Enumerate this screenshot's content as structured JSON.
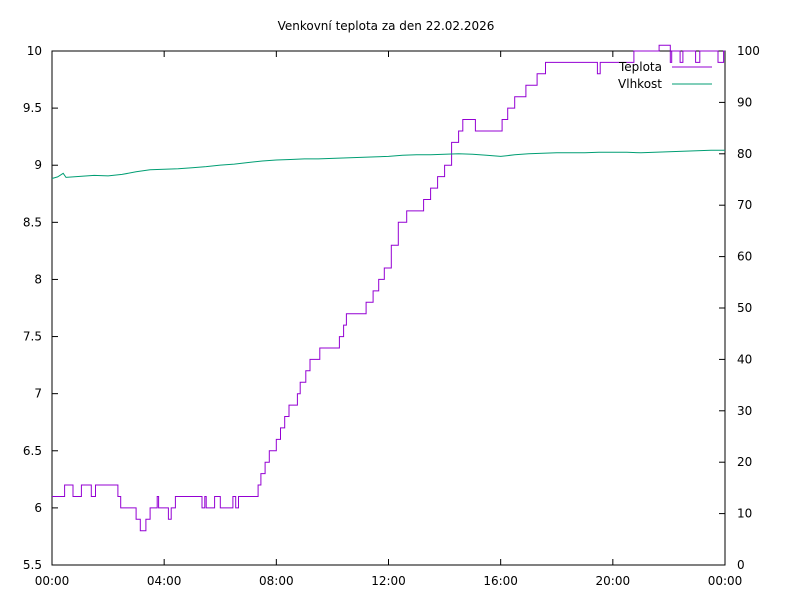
{
  "chart_data": {
    "type": "line",
    "title": "Venkovní teplota za den 22.02.2026",
    "x": {
      "range_hours": [
        0,
        24
      ],
      "tick_labels": [
        "00:00",
        "04:00",
        "08:00",
        "12:00",
        "16:00",
        "20:00",
        "00:00"
      ]
    },
    "y_left": {
      "range": [
        5.5,
        10
      ],
      "tick_labels": [
        "5.5",
        "6",
        "6.5",
        "7",
        "7.5",
        "8",
        "8.5",
        "9",
        "9.5",
        "10"
      ]
    },
    "y_right": {
      "range": [
        0,
        100
      ],
      "tick_labels": [
        "0",
        "10",
        "20",
        "30",
        "40",
        "50",
        "60",
        "70",
        "80",
        "90",
        "100"
      ]
    },
    "grid": false,
    "legend_position": "top-right",
    "series": [
      {
        "name": "Teplota",
        "axis": "left",
        "color": "#9400d3",
        "points": [
          [
            0.0,
            6.1
          ],
          [
            0.4,
            6.1
          ],
          [
            0.45,
            6.2
          ],
          [
            0.7,
            6.2
          ],
          [
            0.75,
            6.1
          ],
          [
            1.0,
            6.1
          ],
          [
            1.05,
            6.2
          ],
          [
            1.35,
            6.2
          ],
          [
            1.4,
            6.1
          ],
          [
            1.5,
            6.1
          ],
          [
            1.55,
            6.2
          ],
          [
            2.3,
            6.2
          ],
          [
            2.35,
            6.1
          ],
          [
            2.45,
            6.0
          ],
          [
            2.95,
            6.0
          ],
          [
            3.0,
            5.9
          ],
          [
            3.1,
            5.9
          ],
          [
            3.15,
            5.8
          ],
          [
            3.3,
            5.8
          ],
          [
            3.35,
            5.9
          ],
          [
            3.45,
            5.9
          ],
          [
            3.5,
            6.0
          ],
          [
            3.7,
            6.0
          ],
          [
            3.75,
            6.1
          ],
          [
            3.8,
            6.0
          ],
          [
            4.1,
            6.0
          ],
          [
            4.15,
            5.9
          ],
          [
            4.25,
            6.0
          ],
          [
            4.35,
            6.0
          ],
          [
            4.4,
            6.1
          ],
          [
            5.3,
            6.1
          ],
          [
            5.35,
            6.0
          ],
          [
            5.45,
            6.1
          ],
          [
            5.5,
            6.0
          ],
          [
            5.75,
            6.0
          ],
          [
            5.8,
            6.1
          ],
          [
            5.95,
            6.1
          ],
          [
            6.0,
            6.0
          ],
          [
            6.4,
            6.0
          ],
          [
            6.45,
            6.1
          ],
          [
            6.55,
            6.0
          ],
          [
            6.65,
            6.1
          ],
          [
            7.3,
            6.1
          ],
          [
            7.35,
            6.2
          ],
          [
            7.45,
            6.3
          ],
          [
            7.6,
            6.4
          ],
          [
            7.75,
            6.5
          ],
          [
            8.0,
            6.6
          ],
          [
            8.15,
            6.7
          ],
          [
            8.3,
            6.8
          ],
          [
            8.45,
            6.9
          ],
          [
            8.75,
            7.0
          ],
          [
            8.85,
            7.1
          ],
          [
            9.05,
            7.2
          ],
          [
            9.2,
            7.3
          ],
          [
            9.5,
            7.3
          ],
          [
            9.55,
            7.4
          ],
          [
            10.1,
            7.4
          ],
          [
            10.25,
            7.5
          ],
          [
            10.4,
            7.6
          ],
          [
            10.5,
            7.7
          ],
          [
            11.1,
            7.7
          ],
          [
            11.2,
            7.8
          ],
          [
            11.45,
            7.9
          ],
          [
            11.65,
            8.0
          ],
          [
            11.85,
            8.1
          ],
          [
            12.1,
            8.3
          ],
          [
            12.35,
            8.5
          ],
          [
            12.6,
            8.5
          ],
          [
            12.65,
            8.6
          ],
          [
            13.1,
            8.6
          ],
          [
            13.25,
            8.7
          ],
          [
            13.5,
            8.8
          ],
          [
            13.75,
            8.9
          ],
          [
            14.0,
            9.0
          ],
          [
            14.25,
            9.2
          ],
          [
            14.5,
            9.3
          ],
          [
            14.65,
            9.4
          ],
          [
            15.05,
            9.4
          ],
          [
            15.1,
            9.3
          ],
          [
            15.95,
            9.3
          ],
          [
            16.05,
            9.4
          ],
          [
            16.25,
            9.5
          ],
          [
            16.5,
            9.6
          ],
          [
            16.9,
            9.7
          ],
          [
            17.3,
            9.8
          ],
          [
            17.6,
            9.9
          ],
          [
            19.4,
            9.9
          ],
          [
            19.45,
            9.8
          ],
          [
            19.55,
            9.9
          ],
          [
            20.7,
            9.9
          ],
          [
            20.75,
            10.0
          ],
          [
            21.5,
            10.0
          ],
          [
            21.65,
            10.05
          ],
          [
            22.0,
            10.05
          ],
          [
            22.05,
            9.9
          ],
          [
            22.1,
            10.0
          ],
          [
            22.4,
            9.9
          ],
          [
            22.5,
            10.0
          ],
          [
            22.9,
            10.0
          ],
          [
            22.95,
            9.9
          ],
          [
            23.1,
            10.0
          ],
          [
            23.7,
            10.0
          ],
          [
            23.75,
            9.9
          ],
          [
            23.95,
            10.0
          ],
          [
            24.0,
            10.0
          ]
        ]
      },
      {
        "name": "Vlhkost",
        "axis": "right",
        "color": "#009e73",
        "points": [
          [
            0.0,
            75.2
          ],
          [
            0.2,
            75.5
          ],
          [
            0.4,
            76.2
          ],
          [
            0.5,
            75.4
          ],
          [
            1.0,
            75.6
          ],
          [
            1.5,
            75.8
          ],
          [
            2.0,
            75.7
          ],
          [
            2.5,
            76.0
          ],
          [
            3.0,
            76.5
          ],
          [
            3.5,
            76.9
          ],
          [
            4.0,
            77.0
          ],
          [
            4.5,
            77.1
          ],
          [
            5.0,
            77.3
          ],
          [
            5.5,
            77.5
          ],
          [
            6.0,
            77.8
          ],
          [
            6.5,
            78.0
          ],
          [
            7.0,
            78.3
          ],
          [
            7.5,
            78.6
          ],
          [
            8.0,
            78.8
          ],
          [
            8.5,
            78.9
          ],
          [
            9.0,
            79.0
          ],
          [
            9.5,
            79.0
          ],
          [
            10.0,
            79.1
          ],
          [
            10.5,
            79.2
          ],
          [
            11.0,
            79.3
          ],
          [
            11.5,
            79.4
          ],
          [
            12.0,
            79.5
          ],
          [
            12.5,
            79.7
          ],
          [
            13.0,
            79.8
          ],
          [
            13.5,
            79.8
          ],
          [
            14.0,
            79.9
          ],
          [
            14.5,
            80.0
          ],
          [
            15.0,
            79.9
          ],
          [
            15.5,
            79.7
          ],
          [
            16.0,
            79.5
          ],
          [
            16.5,
            79.8
          ],
          [
            17.0,
            80.0
          ],
          [
            17.5,
            80.1
          ],
          [
            18.0,
            80.2
          ],
          [
            18.5,
            80.2
          ],
          [
            19.0,
            80.2
          ],
          [
            19.5,
            80.3
          ],
          [
            20.0,
            80.3
          ],
          [
            20.5,
            80.3
          ],
          [
            21.0,
            80.2
          ],
          [
            21.5,
            80.3
          ],
          [
            22.0,
            80.4
          ],
          [
            22.5,
            80.5
          ],
          [
            23.0,
            80.6
          ],
          [
            23.5,
            80.7
          ],
          [
            24.0,
            80.7
          ]
        ]
      }
    ]
  }
}
